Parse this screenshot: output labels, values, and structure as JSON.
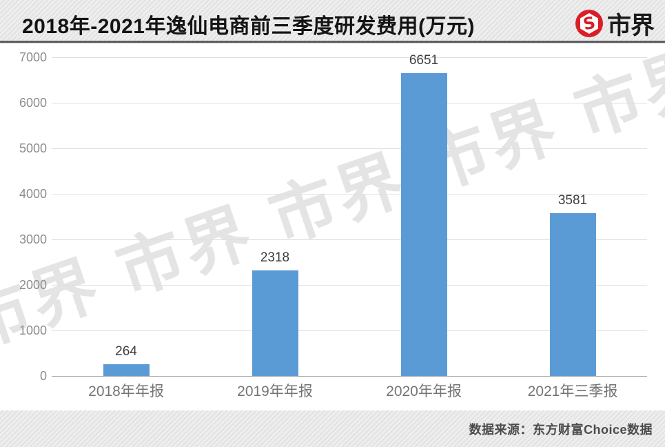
{
  "header": {
    "title": "2018年-2021年逸仙电商前三季度研发费用(万元)",
    "logo_text": "市界",
    "logo_color": "#d91e28"
  },
  "chart_data": {
    "type": "bar",
    "categories": [
      "2018年年报",
      "2019年年报",
      "2020年年报",
      "2021年三季报"
    ],
    "values": [
      264,
      2318,
      6651,
      3581
    ],
    "title": "2018年-2021年逸仙电商前三季度研发费用(万元)",
    "xlabel": "",
    "ylabel": "",
    "ylim": [
      0,
      7000
    ],
    "ytick_step": 1000,
    "yticks": [
      0,
      1000,
      2000,
      3000,
      4000,
      5000,
      6000,
      7000
    ],
    "bar_color": "#5b9bd5",
    "grid": true,
    "legend": false,
    "value_labels": [
      264,
      2318,
      6651,
      3581
    ]
  },
  "watermark": {
    "text": "市界 市界 市界 市界 市界 市界"
  },
  "footer": {
    "source": "数据来源：东方财富Choice数据"
  }
}
